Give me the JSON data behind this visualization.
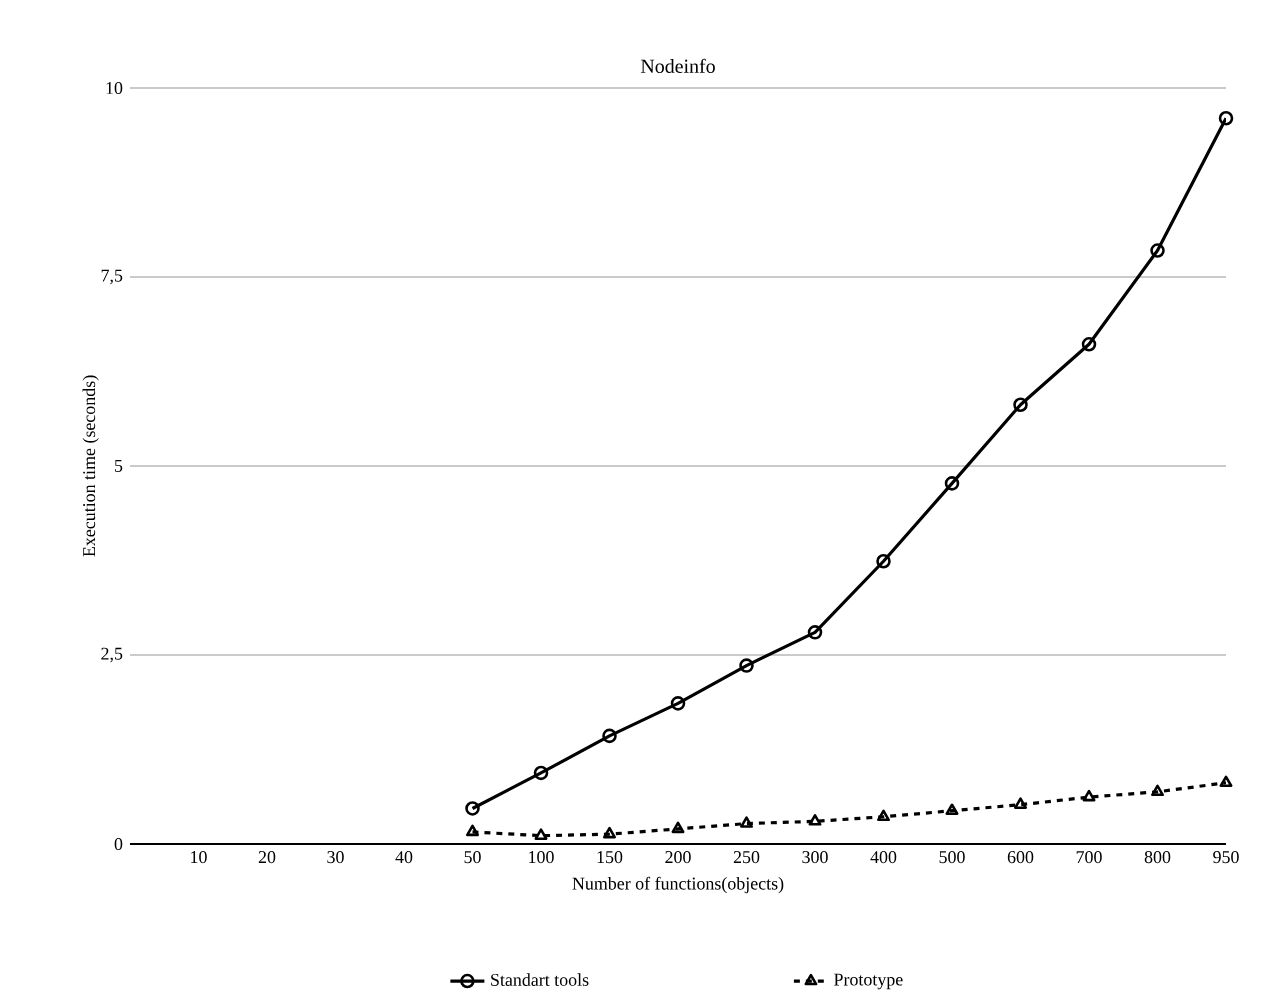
{
  "chart_data": {
    "type": "line",
    "title": "Nodeinfo",
    "xlabel": "Number of functions(objects)",
    "ylabel": "Execution time (seconds)",
    "categories": [
      "10",
      "20",
      "30",
      "40",
      "50",
      "100",
      "150",
      "200",
      "250",
      "300",
      "400",
      "500",
      "600",
      "700",
      "800",
      "950"
    ],
    "series": [
      {
        "name": "Standart tools",
        "color": "#000000",
        "marker": "circle",
        "line_style": "solid",
        "values": [
          null,
          null,
          null,
          null,
          0.47,
          0.94,
          1.43,
          1.86,
          2.36,
          2.8,
          3.74,
          4.77,
          5.81,
          6.61,
          7.85,
          9.6
        ]
      },
      {
        "name": "Prototype",
        "color": "#000000",
        "marker": "triangle",
        "line_style": "dashed",
        "values": [
          null,
          null,
          null,
          null,
          0.16,
          0.11,
          0.13,
          0.2,
          0.27,
          0.3,
          0.36,
          0.44,
          0.52,
          0.62,
          0.69,
          0.81
        ]
      }
    ],
    "ylim": [
      0,
      10
    ],
    "yticks": [
      0,
      {
        "value": 2.5,
        "label": "2,5"
      },
      5,
      {
        "value": 7.5,
        "label": "7,5"
      },
      10
    ],
    "grid": "y",
    "legend": "bottom"
  }
}
